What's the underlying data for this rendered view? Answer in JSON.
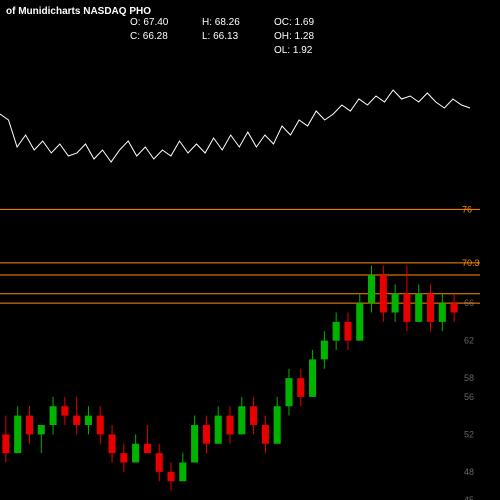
{
  "header": {
    "title_left": "of Munidicharts NASDAQ PHO"
  },
  "ohlc": {
    "O": "O: 67.40",
    "H": "H: 68.26",
    "C": "C: 66.28",
    "L": "L: 66.13",
    "OC": "OC: 1.69",
    "OH": "OH: 1.28",
    "OL": "OL: 1.92"
  },
  "upper_chart": {
    "type": "line",
    "line_color": "#ffffff",
    "line_width": 1,
    "ylim": [
      40,
      80
    ],
    "points": [
      62,
      60,
      51,
      55,
      50,
      53,
      49,
      52,
      48,
      49,
      52,
      47,
      50,
      46,
      50,
      53,
      48,
      51,
      47,
      50,
      48,
      53,
      49,
      52,
      49,
      54,
      50,
      55,
      51,
      56,
      51,
      55,
      52,
      58,
      55,
      60,
      58,
      63,
      60,
      62,
      65,
      63,
      67,
      65,
      68,
      66,
      70,
      67,
      68,
      66,
      69,
      66,
      64,
      67,
      65,
      64
    ]
  },
  "lower_chart": {
    "type": "candlestick",
    "background": "#000000",
    "up_color": "#00b300",
    "down_color": "#e60000",
    "wick_color_grid": "#333333",
    "axis_label_color": "#666666",
    "hline_color": "#ff8c00",
    "ylim": [
      45,
      77
    ],
    "ytick_step": 4,
    "yticks": [
      45,
      48,
      52,
      56,
      58,
      62,
      66
    ],
    "hlines": [
      {
        "y": 70.3,
        "label": "70.3"
      },
      {
        "y": 69,
        "label": ""
      },
      {
        "y": 67,
        "label": ""
      },
      {
        "y": 66,
        "label": ""
      },
      {
        "y": 76,
        "label": "76"
      }
    ],
    "candles": [
      {
        "o": 52,
        "h": 54,
        "l": 49,
        "c": 50
      },
      {
        "o": 50,
        "h": 55,
        "l": 50,
        "c": 54
      },
      {
        "o": 54,
        "h": 55,
        "l": 51,
        "c": 52
      },
      {
        "o": 52,
        "h": 53,
        "l": 50,
        "c": 53
      },
      {
        "o": 53,
        "h": 56,
        "l": 52,
        "c": 55
      },
      {
        "o": 55,
        "h": 56,
        "l": 53,
        "c": 54
      },
      {
        "o": 54,
        "h": 56,
        "l": 52,
        "c": 53
      },
      {
        "o": 53,
        "h": 55,
        "l": 52,
        "c": 54
      },
      {
        "o": 54,
        "h": 55,
        "l": 51,
        "c": 52
      },
      {
        "o": 52,
        "h": 53,
        "l": 49,
        "c": 50
      },
      {
        "o": 50,
        "h": 51,
        "l": 48,
        "c": 49
      },
      {
        "o": 49,
        "h": 52,
        "l": 49,
        "c": 51
      },
      {
        "o": 51,
        "h": 53,
        "l": 50,
        "c": 50
      },
      {
        "o": 50,
        "h": 51,
        "l": 47,
        "c": 48
      },
      {
        "o": 48,
        "h": 49,
        "l": 46,
        "c": 47
      },
      {
        "o": 47,
        "h": 50,
        "l": 47,
        "c": 49
      },
      {
        "o": 49,
        "h": 54,
        "l": 49,
        "c": 53
      },
      {
        "o": 53,
        "h": 54,
        "l": 50,
        "c": 51
      },
      {
        "o": 51,
        "h": 55,
        "l": 51,
        "c": 54
      },
      {
        "o": 54,
        "h": 55,
        "l": 51,
        "c": 52
      },
      {
        "o": 52,
        "h": 56,
        "l": 52,
        "c": 55
      },
      {
        "o": 55,
        "h": 56,
        "l": 52,
        "c": 53
      },
      {
        "o": 53,
        "h": 54,
        "l": 50,
        "c": 51
      },
      {
        "o": 51,
        "h": 56,
        "l": 51,
        "c": 55
      },
      {
        "o": 55,
        "h": 59,
        "l": 54,
        "c": 58
      },
      {
        "o": 58,
        "h": 59,
        "l": 55,
        "c": 56
      },
      {
        "o": 56,
        "h": 61,
        "l": 56,
        "c": 60
      },
      {
        "o": 60,
        "h": 63,
        "l": 59,
        "c": 62
      },
      {
        "o": 62,
        "h": 65,
        "l": 61,
        "c": 64
      },
      {
        "o": 64,
        "h": 65,
        "l": 61,
        "c": 62
      },
      {
        "o": 62,
        "h": 67,
        "l": 62,
        "c": 66
      },
      {
        "o": 66,
        "h": 70,
        "l": 65,
        "c": 69
      },
      {
        "o": 69,
        "h": 70,
        "l": 64,
        "c": 65
      },
      {
        "o": 65,
        "h": 68,
        "l": 64,
        "c": 67
      },
      {
        "o": 67,
        "h": 70,
        "l": 63,
        "c": 64
      },
      {
        "o": 64,
        "h": 68,
        "l": 64,
        "c": 67
      },
      {
        "o": 67,
        "h": 68,
        "l": 63,
        "c": 64
      },
      {
        "o": 64,
        "h": 67,
        "l": 63,
        "c": 66
      },
      {
        "o": 66,
        "h": 67,
        "l": 64,
        "c": 65
      }
    ]
  }
}
